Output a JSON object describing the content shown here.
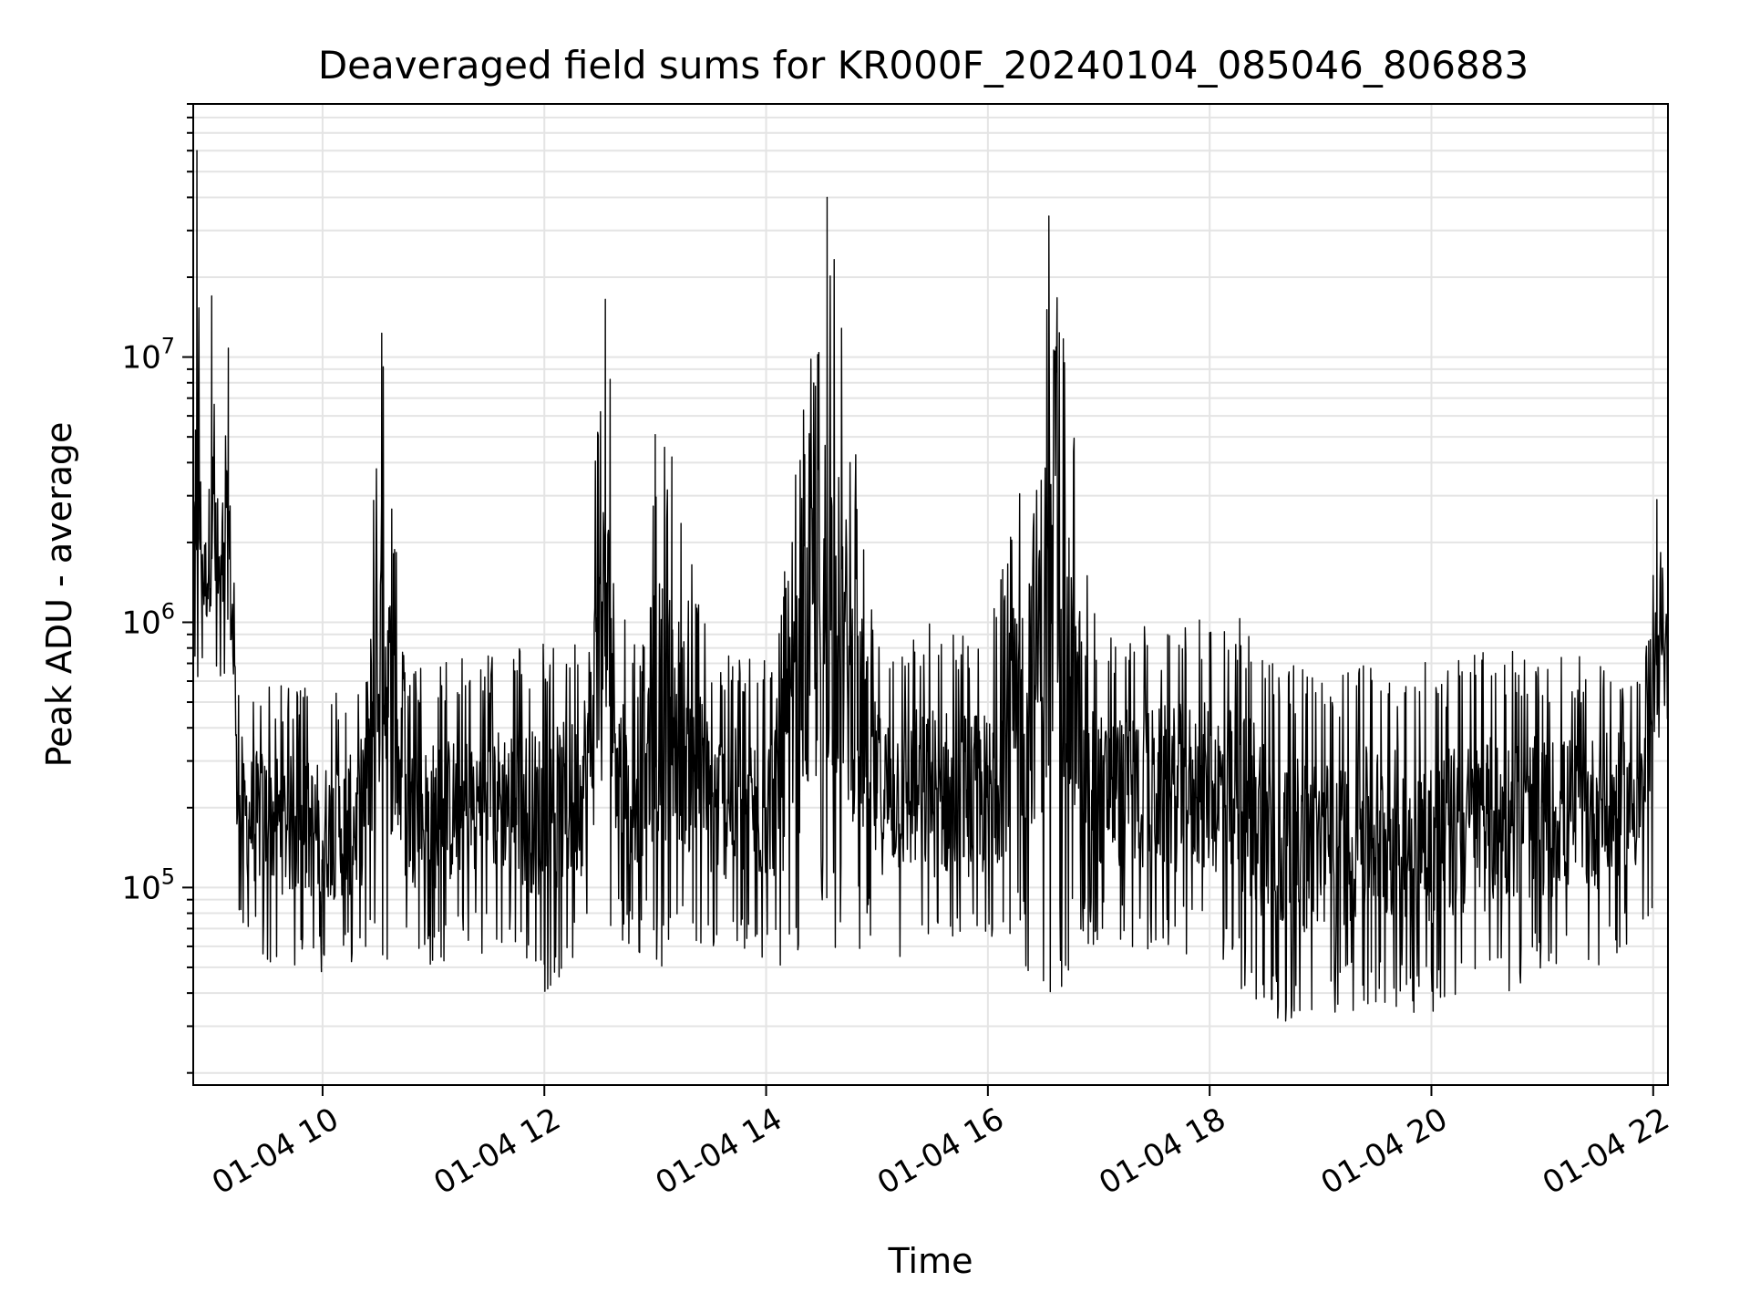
{
  "chart_data": {
    "type": "line",
    "title": "Deaveraged field sums for KR000F_20240104_085046_806883",
    "xlabel": "Time",
    "ylabel": "Peak ADU - average",
    "y_scale": "log",
    "ylim": [
      18000,
      90000000
    ],
    "xlim": [
      "2024-01-04 08:50",
      "2024-01-04 22:08"
    ],
    "x_ticks": [
      "01-04 10",
      "01-04 12",
      "01-04 14",
      "01-04 16",
      "01-04 18",
      "01-04 20",
      "01-04 22"
    ],
    "y_ticks": [
      {
        "base": "10",
        "exp": "5"
      },
      {
        "base": "10",
        "exp": "6"
      },
      {
        "base": "10",
        "exp": "7"
      }
    ],
    "grid": true,
    "line_color": "#000000",
    "series": [
      {
        "x": [
          "2024-01-04 08:50",
          "2024-01-04 08:52",
          "2024-01-04 08:55",
          "2024-01-04 08:58",
          "2024-01-04 09:00",
          "2024-01-04 09:03",
          "2024-01-04 09:06",
          "2024-01-04 09:09",
          "2024-01-04 09:12",
          "2024-01-04 09:15",
          "2024-01-04 09:20",
          "2024-01-04 09:30",
          "2024-01-04 09:40",
          "2024-01-04 10:00",
          "2024-01-04 10:20",
          "2024-01-04 10:32",
          "2024-01-04 10:45",
          "2024-01-04 11:00",
          "2024-01-04 11:20",
          "2024-01-04 11:40",
          "2024-01-04 12:00",
          "2024-01-04 12:20",
          "2024-01-04 12:33",
          "2024-01-04 12:45",
          "2024-01-04 13:00",
          "2024-01-04 13:09",
          "2024-01-04 13:30",
          "2024-01-04 14:00",
          "2024-01-04 14:10",
          "2024-01-04 14:33",
          "2024-01-04 15:00",
          "2024-01-04 15:30",
          "2024-01-04 16:00",
          "2024-01-04 16:08",
          "2024-01-04 16:33",
          "2024-01-04 17:00",
          "2024-01-04 17:30",
          "2024-01-04 18:00",
          "2024-01-04 18:25",
          "2024-01-04 18:40",
          "2024-01-04 19:00",
          "2024-01-04 19:30",
          "2024-01-04 20:00",
          "2024-01-04 20:30",
          "2024-01-04 21:00",
          "2024-01-04 21:30",
          "2024-01-04 21:55",
          "2024-01-04 22:00",
          "2024-01-04 22:02",
          "2024-01-04 22:05",
          "2024-01-04 22:08"
        ],
        "y": [
          1500000,
          60000000,
          1800000,
          1300000,
          17000000,
          1400000,
          1200000,
          10800000,
          1300000,
          200000,
          180000,
          150000,
          160000,
          150000,
          160000,
          12300000,
          170000,
          160000,
          200000,
          220000,
          230000,
          240000,
          16500000,
          200000,
          5100000,
          4200000,
          210000,
          200000,
          1550000,
          40000000,
          250000,
          240000,
          230000,
          1580000,
          34000000,
          260000,
          280000,
          290000,
          260000,
          120000,
          100000,
          110000,
          105000,
          190000,
          210000,
          230000,
          240000,
          1500000,
          2900000,
          1600000,
          1800000
        ],
        "y_min": [
          700000,
          320000,
          700000,
          600000,
          500000,
          600000,
          500000,
          480000,
          280000,
          75000,
          60000,
          52000,
          50000,
          48000,
          50000,
          52000,
          55000,
          50000,
          55000,
          60000,
          40000,
          55000,
          58000,
          60000,
          45000,
          50000,
          55000,
          52000,
          48000,
          55000,
          55000,
          50000,
          52000,
          58000,
          35000,
          60000,
          55000,
          55000,
          35000,
          28000,
          32000,
          35000,
          33000,
          38000,
          45000,
          50000,
          65000,
          80000,
          210000,
          800000,
          150000
        ],
        "y_max": [
          3000000,
          60000000,
          2800000,
          4000000,
          17000000,
          3500000,
          3000000,
          10800000,
          1700000,
          450000,
          550000,
          650000,
          600000,
          550000,
          600000,
          12300000,
          650000,
          700000,
          750000,
          800000,
          850000,
          900000,
          16500000,
          700000,
          5100000,
          4200000,
          800000,
          750000,
          1550000,
          40000000,
          950000,
          1050000,
          950000,
          1580000,
          34000000,
          900000,
          1000000,
          1050000,
          1100000,
          700000,
          650000,
          750000,
          700000,
          800000,
          750000,
          750000,
          700000,
          1500000,
          2900000,
          2000000,
          1900000
        ]
      }
    ]
  }
}
